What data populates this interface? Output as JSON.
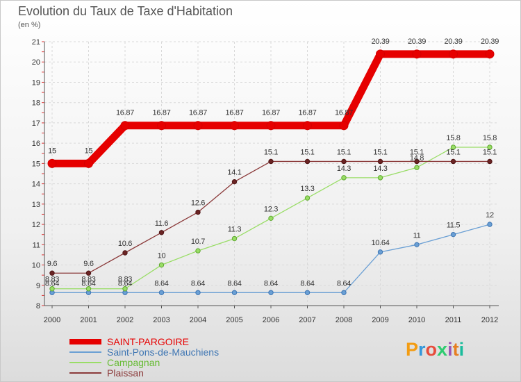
{
  "header": {
    "title": "Evolution du Taux de Taxe d'Habitation",
    "subtitle": "(en %)"
  },
  "logo": {
    "text": "Proxiti",
    "colors": [
      "#f39c12",
      "#3498db",
      "#e74c3c",
      "#2ecc71",
      "#9b59b6",
      "#e67e22",
      "#1abc9c"
    ]
  },
  "chart_data": {
    "type": "line",
    "title": "Evolution du Taux de Taxe d'Habitation",
    "ylabel": "(en %)",
    "xlabel": "",
    "x": [
      "2000",
      "2001",
      "2002",
      "2003",
      "2004",
      "2005",
      "2006",
      "2007",
      "2008",
      "2009",
      "2010",
      "2011",
      "2012"
    ],
    "ylim": [
      8,
      21
    ],
    "yticks": [
      "8",
      "9",
      "10",
      "11",
      "12",
      "13",
      "14",
      "15",
      "16",
      "17",
      "18",
      "19",
      "20",
      "21"
    ],
    "grid": true,
    "legend_position": "bottom-left",
    "series": [
      {
        "name": "SAINT-PARGOIRE",
        "color": "#e60000",
        "values": [
          15,
          15,
          16.87,
          16.87,
          16.87,
          16.87,
          16.87,
          16.87,
          16.87,
          20.39,
          20.39,
          20.39,
          20.39
        ],
        "labels": [
          "15",
          "15",
          "16.87",
          "16.87",
          "16.87",
          "16.87",
          "16.87",
          "16.87",
          "16.87",
          "20.39",
          "20.39",
          "20.39",
          "20.39"
        ]
      },
      {
        "name": "Saint-Pons-de-Mauchiens",
        "color": "#6a9fd4",
        "values": [
          8.64,
          8.64,
          8.64,
          8.64,
          8.64,
          8.64,
          8.64,
          8.64,
          8.64,
          10.64,
          11,
          11.5,
          12
        ],
        "labels": [
          "8.64",
          "8.64",
          "8.64",
          "8.64",
          "8.64",
          "8.64",
          "8.64",
          "8.64",
          "8.64",
          "10.64",
          "11",
          "11.5",
          "12"
        ]
      },
      {
        "name": "Campagnan",
        "color": "#99dd66",
        "values": [
          8.83,
          8.83,
          8.83,
          10,
          10.7,
          11.3,
          12.3,
          13.3,
          14.3,
          14.3,
          14.8,
          15.8,
          15.8
        ],
        "labels": [
          "8.83",
          "8.83",
          "8.83",
          "10",
          "10.7",
          "11.3",
          "12.3",
          "13.3",
          "14.3",
          "14.3",
          "14.8",
          "15.8",
          "15.8"
        ]
      },
      {
        "name": "Plaissan",
        "color": "#8b3a3a",
        "values": [
          9.6,
          9.6,
          10.6,
          11.6,
          12.6,
          14.1,
          15.1,
          15.1,
          15.1,
          15.1,
          15.1,
          15.1,
          15.1
        ],
        "labels": [
          "9.6",
          "9.6",
          "10.6",
          "11.6",
          "12.6",
          "14.1",
          "15.1",
          "15.1",
          "15.1",
          "15.1",
          "15.1",
          "15.1",
          "15.1"
        ]
      }
    ]
  }
}
